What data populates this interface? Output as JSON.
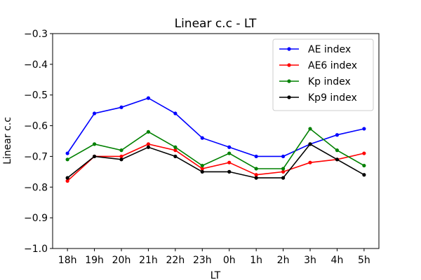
{
  "chart_data": {
    "type": "line",
    "title": "Linear c.c - LT",
    "xlabel": "LT",
    "ylabel": "Linear c.c",
    "categories": [
      "18h",
      "19h",
      "20h",
      "21h",
      "22h",
      "23h",
      "0h",
      "1h",
      "2h",
      "3h",
      "4h",
      "5h"
    ],
    "ylim": [
      -1.0,
      -0.3
    ],
    "yticks": [
      -1.0,
      -0.9,
      -0.8,
      -0.7,
      -0.6,
      -0.5,
      -0.4,
      -0.3
    ],
    "ytick_labels": [
      "−1.0",
      "−0.9",
      "−0.8",
      "−0.7",
      "−0.6",
      "−0.5",
      "−0.4",
      "−0.3"
    ],
    "grid": false,
    "legend_position": "top-right",
    "series": [
      {
        "name": "AE index",
        "color": "#0000ff",
        "values": [
          -0.69,
          -0.56,
          -0.54,
          -0.51,
          -0.56,
          -0.64,
          -0.67,
          -0.7,
          -0.7,
          -0.66,
          -0.63,
          -0.61
        ]
      },
      {
        "name": "AE6 index",
        "color": "#ff0000",
        "values": [
          -0.78,
          -0.7,
          -0.7,
          -0.66,
          -0.68,
          -0.74,
          -0.72,
          -0.76,
          -0.75,
          -0.72,
          -0.71,
          -0.69
        ]
      },
      {
        "name": "Kp index",
        "color": "#008000",
        "values": [
          -0.71,
          -0.66,
          -0.68,
          -0.62,
          -0.67,
          -0.73,
          -0.69,
          -0.74,
          -0.74,
          -0.61,
          -0.68,
          -0.73
        ]
      },
      {
        "name": "Kp9 index",
        "color": "#000000",
        "values": [
          -0.77,
          -0.7,
          -0.71,
          -0.67,
          -0.7,
          -0.75,
          -0.75,
          -0.77,
          -0.77,
          -0.66,
          -0.71,
          -0.76
        ]
      }
    ]
  }
}
